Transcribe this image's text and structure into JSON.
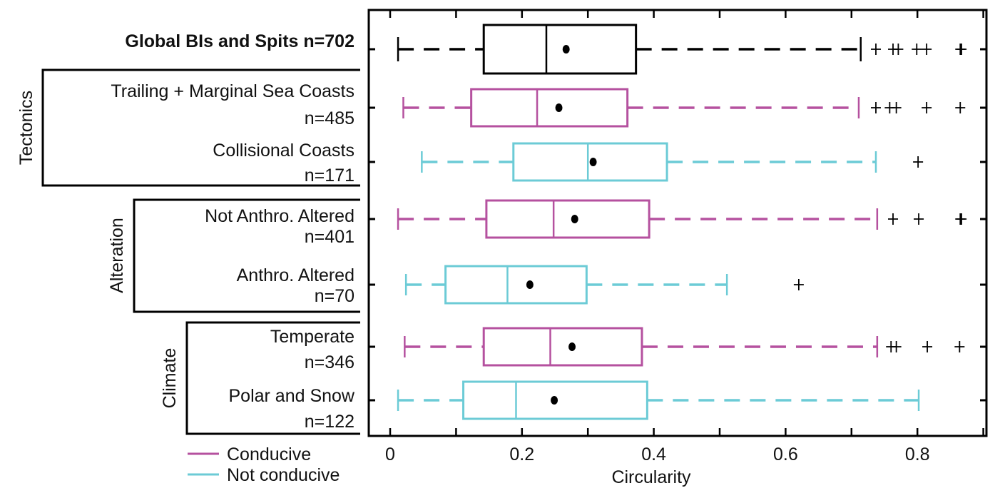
{
  "chart_data": {
    "type": "boxplot",
    "orientation": "horizontal",
    "xlabel": "Circularity",
    "xlim": [
      -0.03,
      0.91
    ],
    "xticks": [
      0,
      0.1,
      0.2,
      0.3,
      0.4,
      0.5,
      0.6,
      0.7,
      0.8,
      0.9
    ],
    "xtick_labels": [
      {
        "value": 0,
        "label": "0"
      },
      {
        "value": 0.2,
        "label": "0.2"
      },
      {
        "value": 0.4,
        "label": "0.4"
      },
      {
        "value": 0.6,
        "label": "0.6"
      },
      {
        "value": 0.8,
        "label": "0.8"
      }
    ],
    "grid": false,
    "colors": {
      "global": "#000000",
      "conducive": "#b5519f",
      "not_conducive": "#6ccbd6",
      "mean_marker": "#000000",
      "outlier": "#000000"
    },
    "legend": {
      "position": "bottom-left",
      "entries": [
        {
          "label": "Conducive",
          "group": "conducive"
        },
        {
          "label": "Not conducive",
          "group": "not_conducive"
        }
      ]
    },
    "groups": [
      {
        "label": "Tectonics",
        "members": [
          1,
          2
        ]
      },
      {
        "label": "Alteration",
        "members": [
          3,
          4
        ]
      },
      {
        "label": "Climate",
        "members": [
          5,
          6
        ]
      }
    ],
    "series": [
      {
        "label_lines": [
          "Global BIs and Spits n=702"
        ],
        "bold": true,
        "color_group": "global",
        "whisker_low": 0.012,
        "q1": 0.142,
        "median": 0.237,
        "mean": 0.267,
        "q3": 0.373,
        "whisker_high": 0.714,
        "outliers": [
          0.737,
          0.763,
          0.771,
          0.799,
          0.814,
          0.865,
          0.867
        ]
      },
      {
        "label_lines": [
          "Trailing + Marginal Sea Coasts",
          "n=485"
        ],
        "color_group": "conducive",
        "whisker_low": 0.02,
        "q1": 0.123,
        "median": 0.223,
        "mean": 0.256,
        "q3": 0.36,
        "whisker_high": 0.711,
        "outliers": [
          0.737,
          0.758,
          0.768,
          0.814,
          0.865
        ]
      },
      {
        "label_lines": [
          "Collisional Coasts",
          "n=171"
        ],
        "color_group": "not_conducive",
        "whisker_low": 0.048,
        "q1": 0.187,
        "median": 0.3,
        "mean": 0.308,
        "q3": 0.42,
        "whisker_high": 0.737,
        "outliers": [
          0.801
        ]
      },
      {
        "label_lines": [
          "Not Anthro. Altered",
          "n=401"
        ],
        "color_group": "conducive",
        "whisker_low": 0.012,
        "q1": 0.146,
        "median": 0.248,
        "mean": 0.28,
        "q3": 0.393,
        "whisker_high": 0.739,
        "outliers": [
          0.763,
          0.802,
          0.865,
          0.867
        ]
      },
      {
        "label_lines": [
          "Anthro. Altered",
          "n=70"
        ],
        "color_group": "not_conducive",
        "whisker_low": 0.024,
        "q1": 0.084,
        "median": 0.178,
        "mean": 0.212,
        "q3": 0.298,
        "whisker_high": 0.511,
        "outliers": [
          0.62
        ]
      },
      {
        "label_lines": [
          "Temperate",
          "n=346"
        ],
        "color_group": "conducive",
        "whisker_low": 0.022,
        "q1": 0.142,
        "median": 0.243,
        "mean": 0.276,
        "q3": 0.382,
        "whisker_high": 0.739,
        "outliers": [
          0.76,
          0.768,
          0.815,
          0.864
        ]
      },
      {
        "label_lines": [
          "Polar and Snow",
          "n=122"
        ],
        "color_group": "not_conducive",
        "whisker_low": 0.012,
        "q1": 0.111,
        "median": 0.191,
        "mean": 0.249,
        "q3": 0.39,
        "whisker_high": 0.802,
        "outliers": []
      }
    ]
  }
}
